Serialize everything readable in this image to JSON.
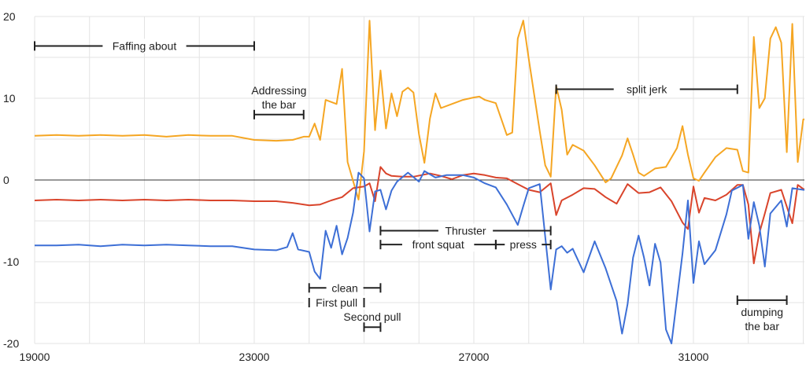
{
  "chart_data": {
    "type": "line",
    "title": "",
    "xlabel": "",
    "ylabel": "",
    "xlim": [
      19000,
      33000
    ],
    "ylim": [
      -20,
      20
    ],
    "x_ticks": [
      19000,
      23000,
      27000,
      31000
    ],
    "x_tick_labels": [
      "19000",
      "23000",
      "27000",
      "31000"
    ],
    "y_ticks": [
      20,
      10,
      0,
      -10,
      -20
    ],
    "y_tick_labels": [
      "20",
      "10",
      "0",
      "-10",
      "-20"
    ],
    "grid": true,
    "legend": "none",
    "series": [
      {
        "color": "#f5a623",
        "points": [
          [
            19000,
            5.4
          ],
          [
            19400,
            5.5
          ],
          [
            19800,
            5.4
          ],
          [
            20200,
            5.5
          ],
          [
            20600,
            5.4
          ],
          [
            21000,
            5.5
          ],
          [
            21400,
            5.3
          ],
          [
            21800,
            5.5
          ],
          [
            22200,
            5.4
          ],
          [
            22600,
            5.4
          ],
          [
            23000,
            4.9
          ],
          [
            23400,
            4.8
          ],
          [
            23700,
            4.9
          ],
          [
            23900,
            5.3
          ],
          [
            24000,
            5.3
          ],
          [
            24100,
            6.9
          ],
          [
            24200,
            4.9
          ],
          [
            24300,
            9.8
          ],
          [
            24500,
            9.3
          ],
          [
            24600,
            13.6
          ],
          [
            24700,
            2.2
          ],
          [
            24900,
            -2.4
          ],
          [
            25000,
            3.5
          ],
          [
            25100,
            19.5
          ],
          [
            25200,
            6.1
          ],
          [
            25300,
            13.4
          ],
          [
            25400,
            6.3
          ],
          [
            25500,
            10.6
          ],
          [
            25600,
            7.8
          ],
          [
            25700,
            10.8
          ],
          [
            25800,
            11.3
          ],
          [
            25900,
            10.7
          ],
          [
            26000,
            5.6
          ],
          [
            26100,
            2.1
          ],
          [
            26200,
            7.5
          ],
          [
            26300,
            10.6
          ],
          [
            26400,
            8.8
          ],
          [
            26600,
            9.3
          ],
          [
            26800,
            9.8
          ],
          [
            27000,
            10.1
          ],
          [
            27100,
            10.2
          ],
          [
            27200,
            9.8
          ],
          [
            27400,
            9.4
          ],
          [
            27600,
            5.5
          ],
          [
            27700,
            5.8
          ],
          [
            27800,
            17.3
          ],
          [
            27900,
            19.5
          ],
          [
            28000,
            14.8
          ],
          [
            28200,
            6.0
          ],
          [
            28300,
            1.8
          ],
          [
            28400,
            0.4
          ],
          [
            28500,
            11.5
          ],
          [
            28600,
            8.6
          ],
          [
            28700,
            3.1
          ],
          [
            28800,
            4.3
          ],
          [
            29000,
            3.6
          ],
          [
            29200,
            1.8
          ],
          [
            29400,
            -0.3
          ],
          [
            29500,
            0.2
          ],
          [
            29700,
            3.0
          ],
          [
            29800,
            5.1
          ],
          [
            29900,
            3.1
          ],
          [
            30000,
            0.9
          ],
          [
            30100,
            0.5
          ],
          [
            30300,
            1.4
          ],
          [
            30500,
            1.6
          ],
          [
            30700,
            3.9
          ],
          [
            30800,
            6.6
          ],
          [
            30900,
            3.1
          ],
          [
            31000,
            0.2
          ],
          [
            31100,
            -0.1
          ],
          [
            31200,
            0.9
          ],
          [
            31400,
            2.8
          ],
          [
            31600,
            3.9
          ],
          [
            31800,
            3.7
          ],
          [
            31900,
            1.1
          ],
          [
            32000,
            0.9
          ],
          [
            32100,
            17.5
          ],
          [
            32200,
            8.8
          ],
          [
            32300,
            10.0
          ],
          [
            32400,
            17.3
          ],
          [
            32500,
            18.7
          ],
          [
            32600,
            16.8
          ],
          [
            32700,
            3.4
          ],
          [
            32800,
            19.1
          ],
          [
            32900,
            2.2
          ],
          [
            33000,
            7.4
          ],
          [
            33100,
            7.5
          ],
          [
            33200,
            10.4
          ],
          [
            33300,
            9.0
          ]
        ]
      },
      {
        "color": "#d9442b",
        "points": [
          [
            19000,
            -2.5
          ],
          [
            19400,
            -2.4
          ],
          [
            19800,
            -2.5
          ],
          [
            20200,
            -2.4
          ],
          [
            20600,
            -2.5
          ],
          [
            21000,
            -2.4
          ],
          [
            21400,
            -2.5
          ],
          [
            21800,
            -2.4
          ],
          [
            22200,
            -2.5
          ],
          [
            22600,
            -2.5
          ],
          [
            23000,
            -2.6
          ],
          [
            23400,
            -2.6
          ],
          [
            23700,
            -2.8
          ],
          [
            24000,
            -3.1
          ],
          [
            24200,
            -3.0
          ],
          [
            24400,
            -2.5
          ],
          [
            24600,
            -2.1
          ],
          [
            24800,
            -1.0
          ],
          [
            25000,
            -0.8
          ],
          [
            25100,
            -0.4
          ],
          [
            25200,
            -2.6
          ],
          [
            25300,
            1.6
          ],
          [
            25400,
            0.8
          ],
          [
            25500,
            0.5
          ],
          [
            25700,
            0.4
          ],
          [
            25900,
            0.4
          ],
          [
            26200,
            0.8
          ],
          [
            26400,
            0.5
          ],
          [
            26600,
            0.1
          ],
          [
            26800,
            0.6
          ],
          [
            27000,
            0.8
          ],
          [
            27200,
            0.6
          ],
          [
            27400,
            0.3
          ],
          [
            27600,
            0.2
          ],
          [
            27800,
            -0.5
          ],
          [
            28000,
            -1.2
          ],
          [
            28200,
            -1.5
          ],
          [
            28400,
            -0.4
          ],
          [
            28500,
            -4.3
          ],
          [
            28600,
            -2.5
          ],
          [
            28800,
            -1.8
          ],
          [
            29000,
            -1.0
          ],
          [
            29200,
            -1.1
          ],
          [
            29400,
            -2.1
          ],
          [
            29600,
            -2.9
          ],
          [
            29800,
            -0.5
          ],
          [
            30000,
            -1.6
          ],
          [
            30200,
            -1.5
          ],
          [
            30400,
            -0.9
          ],
          [
            30600,
            -2.6
          ],
          [
            30800,
            -5.2
          ],
          [
            30900,
            -6.0
          ],
          [
            31000,
            -0.8
          ],
          [
            31100,
            -4.0
          ],
          [
            31200,
            -2.2
          ],
          [
            31400,
            -2.5
          ],
          [
            31600,
            -1.8
          ],
          [
            31800,
            -0.6
          ],
          [
            31900,
            -0.6
          ],
          [
            32000,
            -3.0
          ],
          [
            32100,
            -10.2
          ],
          [
            32200,
            -6.5
          ],
          [
            32300,
            -4.1
          ],
          [
            32400,
            -1.6
          ],
          [
            32600,
            -1.2
          ],
          [
            32800,
            -5.3
          ],
          [
            32900,
            -0.6
          ],
          [
            33000,
            -1.1
          ],
          [
            33200,
            -1.4
          ]
        ]
      },
      {
        "color": "#3d6fd6",
        "points": [
          [
            19000,
            -8.0
          ],
          [
            19400,
            -8.0
          ],
          [
            19800,
            -7.9
          ],
          [
            20200,
            -8.1
          ],
          [
            20600,
            -7.9
          ],
          [
            21000,
            -8.0
          ],
          [
            21400,
            -7.9
          ],
          [
            21800,
            -8.0
          ],
          [
            22200,
            -8.1
          ],
          [
            22600,
            -8.1
          ],
          [
            23000,
            -8.5
          ],
          [
            23400,
            -8.6
          ],
          [
            23600,
            -8.2
          ],
          [
            23700,
            -6.5
          ],
          [
            23800,
            -8.5
          ],
          [
            24000,
            -8.8
          ],
          [
            24100,
            -11.2
          ],
          [
            24200,
            -12.1
          ],
          [
            24300,
            -6.2
          ],
          [
            24400,
            -8.3
          ],
          [
            24500,
            -5.6
          ],
          [
            24600,
            -9.1
          ],
          [
            24700,
            -7.1
          ],
          [
            24800,
            -4.0
          ],
          [
            24900,
            0.9
          ],
          [
            25000,
            0.2
          ],
          [
            25100,
            -6.3
          ],
          [
            25200,
            -1.4
          ],
          [
            25300,
            -1.2
          ],
          [
            25400,
            -3.6
          ],
          [
            25500,
            -1.3
          ],
          [
            25600,
            -0.2
          ],
          [
            25800,
            0.9
          ],
          [
            26000,
            -0.2
          ],
          [
            26100,
            1.1
          ],
          [
            26300,
            0.3
          ],
          [
            26500,
            0.6
          ],
          [
            26800,
            0.6
          ],
          [
            27000,
            0.3
          ],
          [
            27200,
            -0.4
          ],
          [
            27400,
            -0.9
          ],
          [
            27600,
            -3.0
          ],
          [
            27800,
            -5.5
          ],
          [
            27900,
            -3.2
          ],
          [
            28000,
            -1.0
          ],
          [
            28200,
            -0.5
          ],
          [
            28400,
            -13.4
          ],
          [
            28500,
            -8.5
          ],
          [
            28600,
            -8.1
          ],
          [
            28700,
            -8.9
          ],
          [
            28800,
            -8.4
          ],
          [
            29000,
            -11.3
          ],
          [
            29200,
            -7.5
          ],
          [
            29400,
            -10.8
          ],
          [
            29600,
            -14.8
          ],
          [
            29700,
            -18.8
          ],
          [
            29800,
            -15.2
          ],
          [
            29900,
            -9.5
          ],
          [
            30000,
            -6.8
          ],
          [
            30100,
            -9.5
          ],
          [
            30200,
            -12.9
          ],
          [
            30300,
            -7.8
          ],
          [
            30400,
            -10.1
          ],
          [
            30500,
            -18.3
          ],
          [
            30600,
            -20.0
          ],
          [
            30800,
            -9.0
          ],
          [
            30900,
            -2.5
          ],
          [
            31000,
            -12.6
          ],
          [
            31100,
            -7.5
          ],
          [
            31200,
            -10.3
          ],
          [
            31400,
            -8.6
          ],
          [
            31600,
            -4.2
          ],
          [
            31700,
            -1.3
          ],
          [
            31900,
            -0.6
          ],
          [
            32000,
            -7.2
          ],
          [
            32100,
            -2.7
          ],
          [
            32200,
            -5.6
          ],
          [
            32300,
            -10.6
          ],
          [
            32400,
            -4.1
          ],
          [
            32600,
            -2.5
          ],
          [
            32700,
            -5.7
          ],
          [
            32800,
            -1.0
          ],
          [
            33000,
            -1.2
          ],
          [
            33300,
            -1.4
          ]
        ]
      }
    ],
    "annotations": [
      {
        "text": "Faffing about",
        "lines": [
          "Faffing about"
        ],
        "x_start": 19000,
        "x_end": 23000,
        "y": 16.4,
        "label_pos": "inline"
      },
      {
        "text": "Addressing the bar",
        "lines": [
          "Addressing",
          "the bar"
        ],
        "x_start": 23000,
        "x_end": 23900,
        "y": 8.0,
        "label_pos": "above"
      },
      {
        "text": "split jerk",
        "lines": [
          "split jerk"
        ],
        "x_start": 28500,
        "x_end": 31800,
        "y": 11.1,
        "label_pos": "inline"
      },
      {
        "text": "Thruster",
        "lines": [
          "Thruster"
        ],
        "x_start": 25300,
        "x_end": 28400,
        "y": -6.2,
        "label_pos": "inline"
      },
      {
        "text": "front squat",
        "lines": [
          "front squat"
        ],
        "x_start": 25300,
        "x_end": 27400,
        "y": -7.9,
        "label_pos": "inline"
      },
      {
        "text": "press",
        "lines": [
          "press"
        ],
        "x_start": 27400,
        "x_end": 28400,
        "y": -7.9,
        "label_pos": "inline"
      },
      {
        "text": "clean",
        "lines": [
          "clean"
        ],
        "x_start": 24000,
        "x_end": 25300,
        "y": -13.2,
        "label_pos": "inline"
      },
      {
        "text": "First pull",
        "lines": [
          "First pull"
        ],
        "x_start": 24000,
        "x_end": 25000,
        "y": -15.0,
        "label_pos": "inline"
      },
      {
        "text": "Second pull",
        "lines": [
          "Second pull"
        ],
        "x_start": 25000,
        "x_end": 25300,
        "y": -18.0,
        "label_pos": "above"
      },
      {
        "text": "dumping the bar",
        "lines": [
          "dumping",
          "the bar"
        ],
        "x_start": 31800,
        "x_end": 32700,
        "y": -14.7,
        "label_pos": "below"
      }
    ]
  }
}
